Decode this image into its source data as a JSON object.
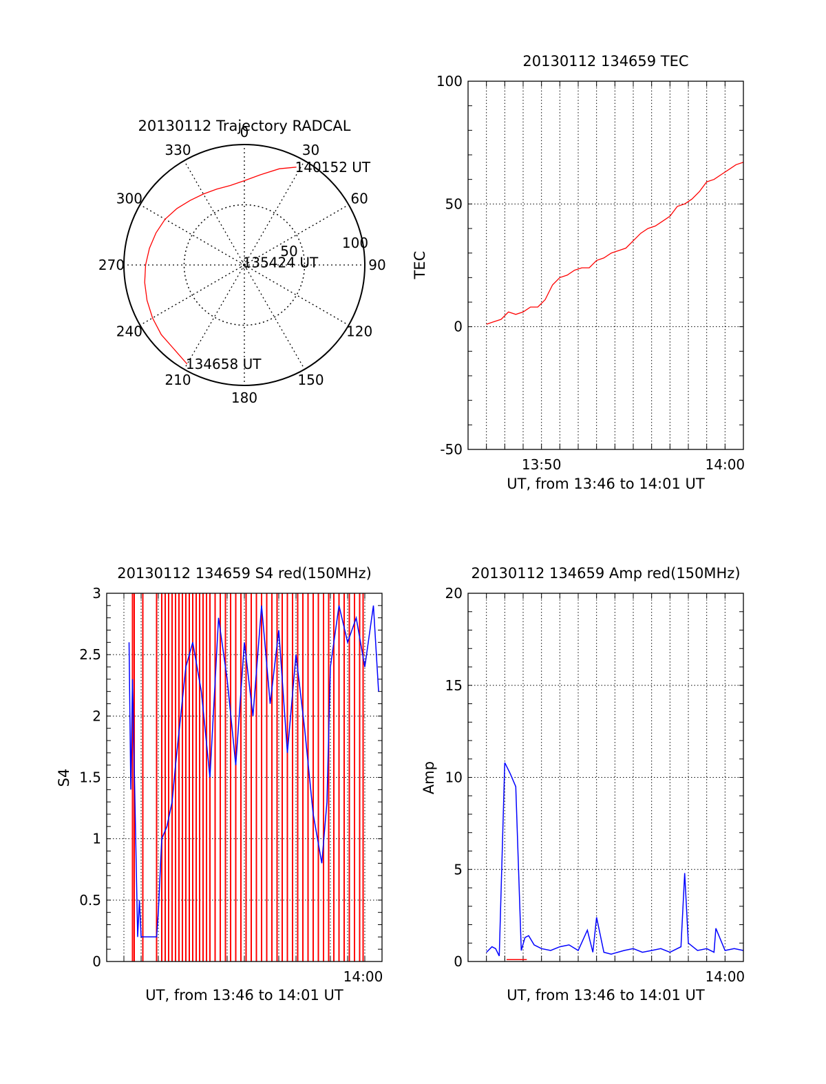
{
  "colors": {
    "primary": "#ff0000",
    "secondary": "#0000ff",
    "axis": "#000000",
    "grid": "#000000"
  },
  "chart_data": [
    {
      "id": "trajectory",
      "type": "polar",
      "title": "20130112 Trajectory RADCAL",
      "azimuth_labels": [
        "0",
        "30",
        "60",
        "90",
        "120",
        "150",
        "180",
        "210",
        "240",
        "270",
        "300",
        "330"
      ],
      "radius_labels": [
        "50",
        "100"
      ],
      "rlim": [
        0,
        100
      ],
      "grid": true,
      "track": [
        [
          28,
          92
        ],
        [
          20,
          85
        ],
        [
          10,
          76
        ],
        [
          0,
          70
        ],
        [
          -10,
          67
        ],
        [
          -20,
          67
        ],
        [
          -30,
          68
        ],
        [
          -40,
          70
        ],
        [
          -50,
          73
        ],
        [
          -60,
          76
        ],
        [
          -70,
          78
        ],
        [
          -80,
          80
        ],
        [
          -90,
          82
        ],
        [
          -100,
          84
        ],
        [
          -110,
          86
        ],
        [
          -120,
          88
        ],
        [
          -130,
          90
        ],
        [
          -140,
          91
        ],
        [
          -150,
          95
        ]
      ],
      "annotations": [
        {
          "text": "140152 UT",
          "az": 28,
          "r": 92
        },
        {
          "text": "135424 UT",
          "az": -6,
          "r": 2
        },
        {
          "text": "134658 UT",
          "az": -150,
          "r": 95
        }
      ]
    },
    {
      "id": "tec",
      "type": "line",
      "title": "20130112 134659 TEC",
      "xlabel": "UT, from 13:46 to 14:01 UT",
      "ylabel": "TEC",
      "xlim": [
        46.0,
        61.0
      ],
      "ylim": [
        -50,
        100
      ],
      "yticks": [
        -50,
        0,
        50,
        100
      ],
      "xticks": [
        {
          "value": 50,
          "label": "13:50"
        },
        {
          "value": 60,
          "label": "14:00"
        }
      ],
      "grid": true,
      "series": [
        {
          "color": "#ff0000",
          "x": [
            47.0,
            47.4,
            47.8,
            48.2,
            48.6,
            49.0,
            49.4,
            49.8,
            50.2,
            50.6,
            51.0,
            51.4,
            51.8,
            52.2,
            52.6,
            53.0,
            53.4,
            53.8,
            54.2,
            54.6,
            55.0,
            55.4,
            55.8,
            56.2,
            56.6,
            57.0,
            57.4,
            57.8,
            58.2,
            58.6,
            59.0,
            59.4,
            59.8,
            60.2,
            60.6,
            61.0
          ],
          "values": [
            1,
            2,
            3,
            6,
            5,
            6,
            8,
            8,
            11,
            17,
            20,
            21,
            23,
            24,
            24,
            27,
            28,
            30,
            31,
            32,
            35,
            38,
            40,
            41,
            43,
            45,
            49,
            50,
            52,
            55,
            59,
            60,
            62,
            64,
            66,
            67
          ]
        }
      ]
    },
    {
      "id": "s4",
      "type": "line",
      "title": "20130112 134659 S4 red(150MHz)",
      "xlabel": "UT, from 13:46 to 14:01 UT",
      "ylabel": "S4",
      "xlim": [
        45.0,
        61.0
      ],
      "ylim": [
        0,
        3
      ],
      "yticks": [
        0,
        0.5,
        1,
        1.5,
        2,
        2.5,
        3
      ],
      "xticks": [
        {
          "value": 59.9,
          "label": "14:00"
        }
      ],
      "grid": true,
      "series": [
        {
          "color": "#ff0000",
          "x": [
            46.5,
            46.6,
            47.1,
            47.9,
            48.2,
            48.4,
            48.6,
            48.8,
            49.0,
            49.2,
            49.4,
            49.6,
            49.8,
            50.0,
            50.2,
            50.4,
            50.6,
            50.8,
            51.0,
            51.3,
            51.6,
            51.9,
            52.2,
            52.5,
            52.8,
            53.1,
            53.4,
            53.7,
            54.0,
            54.3,
            54.6,
            54.9,
            55.2,
            55.5,
            55.8,
            56.1,
            56.4,
            56.7,
            57.0,
            57.3,
            57.6,
            57.9,
            58.2,
            58.5,
            58.8,
            59.1,
            59.4,
            59.7,
            59.9
          ],
          "values": [
            3,
            3,
            3,
            3,
            3,
            3,
            3,
            3,
            3,
            3,
            3,
            3,
            3,
            3,
            3,
            3,
            3,
            3,
            3,
            3,
            3,
            3,
            3,
            3,
            3,
            3,
            3,
            3,
            3,
            3,
            3,
            3,
            3,
            3,
            3,
            3,
            3,
            3,
            3,
            3,
            3,
            3,
            3,
            3,
            3,
            3,
            3,
            3,
            3
          ]
        },
        {
          "color": "#0000ff",
          "x": [
            46.3,
            46.4,
            46.5,
            46.6,
            46.7,
            46.8,
            46.9,
            47.0,
            47.1,
            47.2,
            47.3,
            47.4,
            47.5,
            47.6,
            47.7,
            47.8,
            47.9,
            48.0,
            48.2,
            48.5,
            48.8,
            49.0,
            49.3,
            49.6,
            50.0,
            50.5,
            51.0,
            51.5,
            52.0,
            52.5,
            53.0,
            53.5,
            54.0,
            54.5,
            55.0,
            55.5,
            56.0,
            56.5,
            57.0,
            57.5,
            57.8,
            58.0,
            58.5,
            59.0,
            59.5,
            60.0,
            60.5,
            60.8
          ],
          "values": [
            2.6,
            1.4,
            2.3,
            1.6,
            0.9,
            0.2,
            0.5,
            0.2,
            0.2,
            0.2,
            0.2,
            0.2,
            0.2,
            0.2,
            0.2,
            0.2,
            0.2,
            0.4,
            1.0,
            1.1,
            1.3,
            1.6,
            2.0,
            2.4,
            2.6,
            2.2,
            1.5,
            2.8,
            2.3,
            1.6,
            2.6,
            2.0,
            2.9,
            2.1,
            2.7,
            1.7,
            2.5,
            1.9,
            1.2,
            0.8,
            1.3,
            2.4,
            2.9,
            2.6,
            2.8,
            2.4,
            2.9,
            2.2
          ]
        }
      ]
    },
    {
      "id": "amp",
      "type": "line",
      "title": "20130112 134659 Amp red(150MHz)",
      "xlabel": "UT, from 13:46 to 14:01 UT",
      "ylabel": "Amp",
      "xlim": [
        46.0,
        61.0
      ],
      "ylim": [
        0,
        20
      ],
      "yticks": [
        0,
        5,
        10,
        15,
        20
      ],
      "xticks": [
        {
          "value": 60,
          "label": "14:00"
        }
      ],
      "grid": true,
      "series": [
        {
          "color": "#0000ff",
          "x": [
            47.0,
            47.3,
            47.5,
            47.7,
            48.0,
            48.3,
            48.6,
            48.9,
            49.1,
            49.3,
            49.6,
            50.0,
            50.5,
            51.0,
            51.5,
            52.0,
            52.5,
            52.8,
            53.0,
            53.4,
            53.8,
            54.5,
            55.0,
            55.5,
            56.0,
            56.5,
            57.0,
            57.6,
            57.8,
            58.0,
            58.5,
            59.0,
            59.4,
            59.5,
            60.0,
            60.5,
            61.0
          ],
          "values": [
            0.5,
            0.8,
            0.7,
            0.3,
            10.8,
            10.2,
            9.5,
            0.6,
            1.3,
            1.4,
            0.9,
            0.7,
            0.6,
            0.8,
            0.9,
            0.6,
            1.7,
            0.5,
            2.4,
            0.5,
            0.4,
            0.6,
            0.7,
            0.5,
            0.6,
            0.7,
            0.5,
            0.8,
            4.8,
            1.0,
            0.6,
            0.7,
            0.5,
            1.8,
            0.6,
            0.7,
            0.6
          ]
        },
        {
          "color": "#ff0000",
          "x": [
            48.1,
            48.5,
            48.9,
            49.2
          ],
          "values": [
            0.1,
            0.1,
            0.1,
            0.1
          ]
        }
      ]
    }
  ]
}
